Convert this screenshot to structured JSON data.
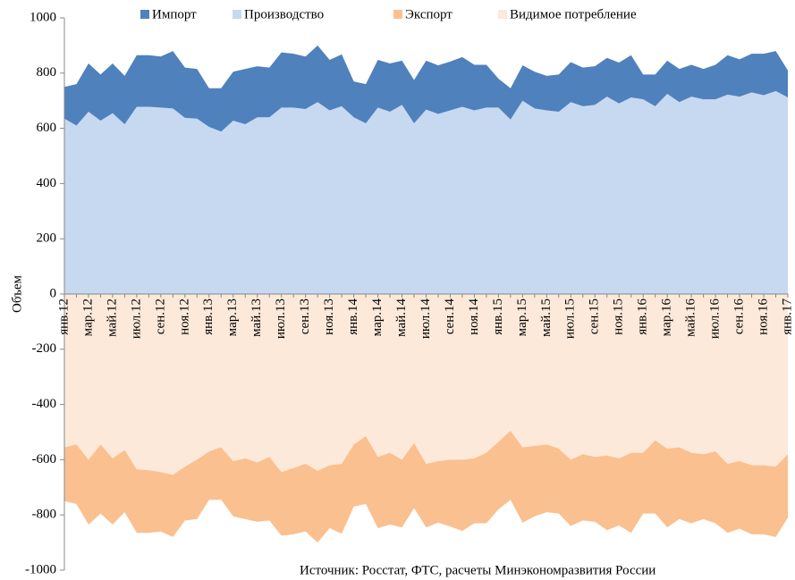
{
  "chart_data": {
    "type": "area",
    "stacked": true,
    "y_label": "Объем",
    "source": "Источник: Росстат, ФТС, расчеты Минэкономразвития России",
    "categories": [
      "янв.12",
      null,
      "мар.12",
      null,
      "май.12",
      null,
      "июл.12",
      null,
      "сен.12",
      null,
      "ноя.12",
      null,
      "янв.13",
      null,
      "мар.13",
      null,
      "май.13",
      null,
      "июл.13",
      null,
      "сен.13",
      null,
      "ноя.13",
      null,
      "янв.14",
      null,
      "мар.14",
      null,
      "май.14",
      null,
      "июл.14",
      null,
      "сен.14",
      null,
      "ноя.14",
      null,
      "янв.15",
      null,
      "мар.15",
      null,
      "май.15",
      null,
      "июл.15",
      null,
      "сен.15",
      null,
      "ноя.15",
      null,
      "янв.16",
      null,
      "мар.16",
      null,
      "май.16",
      null,
      "июл.16",
      null,
      "сен.16",
      null,
      "ноя.16",
      null,
      "янв.17"
    ],
    "series": [
      {
        "name": "Импорт",
        "color": "#4f81bd",
        "values": [
          115,
          150,
          175,
          167,
          180,
          175,
          187,
          187,
          185,
          208,
          182,
          180,
          140,
          157,
          177,
          200,
          185,
          180,
          200,
          195,
          190,
          205,
          183,
          188,
          130,
          142,
          173,
          175,
          160,
          157,
          177,
          176,
          177,
          180,
          165,
          155,
          105,
          113,
          128,
          133,
          125,
          135,
          145,
          140,
          140,
          140,
          148,
          153,
          90,
          115,
          120,
          120,
          115,
          110,
          125,
          143,
          135,
          140,
          150,
          145,
          98
        ]
      },
      {
        "name": "Производство",
        "color": "#c6d9f1",
        "values": [
          635,
          610,
          660,
          628,
          655,
          615,
          678,
          678,
          675,
          672,
          638,
          635,
          605,
          588,
          628,
          615,
          640,
          640,
          675,
          675,
          670,
          695,
          665,
          680,
          640,
          618,
          675,
          660,
          685,
          618,
          668,
          652,
          665,
          678,
          665,
          675,
          675,
          632,
          700,
          672,
          665,
          660,
          695,
          680,
          685,
          715,
          690,
          712,
          705,
          680,
          725,
          695,
          715,
          705,
          705,
          722,
          715,
          730,
          720,
          735,
          712
        ]
      },
      {
        "name": "Экспорт",
        "color": "#fac090",
        "values": [
          -195,
          -215,
          -235,
          -250,
          -240,
          -225,
          -230,
          -227,
          -215,
          -225,
          -195,
          -215,
          -175,
          -190,
          -200,
          -220,
          -215,
          -230,
          -230,
          -240,
          -245,
          -260,
          -228,
          -253,
          -225,
          -245,
          -258,
          -260,
          -245,
          -235,
          -230,
          -223,
          -242,
          -258,
          -235,
          -255,
          -245,
          -250,
          -273,
          -255,
          -245,
          -235,
          -240,
          -240,
          -235,
          -270,
          -243,
          -290,
          -220,
          -265,
          -285,
          -260,
          -255,
          -235,
          -260,
          -250,
          -245,
          -250,
          -250,
          -255,
          -230
        ]
      },
      {
        "name": "Видимое потребление",
        "color": "#fde9d9",
        "values": [
          -555,
          -545,
          -600,
          -545,
          -595,
          -565,
          -635,
          -638,
          -645,
          -655,
          -625,
          -600,
          -570,
          -555,
          -605,
          -595,
          -610,
          -590,
          -645,
          -630,
          -615,
          -640,
          -620,
          -615,
          -545,
          -515,
          -590,
          -575,
          -600,
          -540,
          -615,
          -605,
          -600,
          -600,
          -595,
          -575,
          -535,
          -495,
          -555,
          -550,
          -545,
          -560,
          -600,
          -580,
          -590,
          -585,
          -595,
          -575,
          -575,
          -530,
          -560,
          -555,
          -575,
          -580,
          -570,
          -615,
          -605,
          -620,
          -620,
          -625,
          -580
        ]
      }
    ],
    "ylim": [
      -1000,
      1000
    ],
    "yticks": [
      -1000,
      -800,
      -600,
      -400,
      -200,
      0,
      200,
      400,
      600,
      800,
      1000
    ],
    "legend": "top"
  }
}
